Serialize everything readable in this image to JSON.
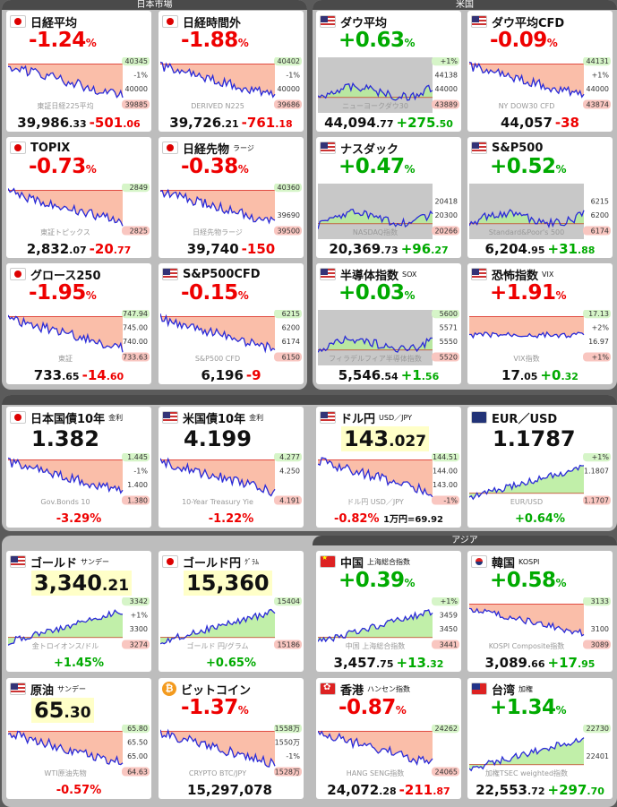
{
  "groups": [
    {
      "id": "japan",
      "title": "日本市場"
    },
    {
      "id": "us",
      "title": "米国"
    },
    {
      "id": "fx",
      "title": ""
    },
    {
      "id": "asia",
      "title": "アジア"
    }
  ],
  "cards": {
    "nikkei": {
      "flag": "jp",
      "name": "日経平均",
      "sub": "",
      "change": "-1.24",
      "pct": "%",
      "dir": "neg",
      "p_int": "39,986",
      "p_dec": ".33",
      "p_chg_int": "-501",
      "p_chg_dec": ".06",
      "watermark": "東証日経225平均",
      "levels": [
        "40345",
        "-1%",
        "40000",
        "39885"
      ],
      "mode": "lower"
    },
    "nikkei_after": {
      "flag": "jp",
      "name": "日経時間外",
      "sub": "",
      "change": "-1.88",
      "pct": "%",
      "dir": "neg",
      "p_int": "39,726",
      "p_dec": ".21",
      "p_chg_int": "-761",
      "p_chg_dec": ".18",
      "watermark": "DERIVED N225",
      "levels": [
        "40402",
        "-1%",
        "40000",
        "39686"
      ],
      "mode": "lower"
    },
    "dow": {
      "flag": "us",
      "name": "ダウ平均",
      "sub": "",
      "change": "+0.63",
      "pct": "%",
      "dir": "pos",
      "p_int": "44,094",
      "p_dec": ".77",
      "p_chg_int": "+275",
      "p_chg_dec": ".50",
      "watermark": "ニューヨークダウ30",
      "levels": [
        "+1%",
        "44138",
        "44000",
        "43889"
      ],
      "mode": "upper"
    },
    "dow_cfd": {
      "flag": "us",
      "name": "ダウ平均CFD",
      "sub": "",
      "change": "-0.09",
      "pct": "%",
      "dir": "neg",
      "p_int": "44,057",
      "p_dec": "",
      "p_chg_int": "-38",
      "p_chg_dec": "",
      "watermark": "NY DOW30 CFD",
      "levels": [
        "44131",
        "+1%",
        "44000",
        "43874"
      ],
      "mode": "lower"
    },
    "topix": {
      "flag": "jp",
      "name": "TOPIX",
      "sub": "",
      "change": "-0.73",
      "pct": "%",
      "dir": "neg",
      "p_int": "2,832",
      "p_dec": ".07",
      "p_chg_int": "-20",
      "p_chg_dec": ".77",
      "watermark": "東証トピックス",
      "levels": [
        "2849",
        "",
        "",
        "2825"
      ],
      "mode": "lower"
    },
    "nk_fut": {
      "flag": "jp",
      "name": "日経先物",
      "sub": "ラージ",
      "change": "-0.38",
      "pct": "%",
      "dir": "neg",
      "p_int": "39,740",
      "p_dec": "",
      "p_chg_int": "-150",
      "p_chg_dec": "",
      "watermark": "日経先物ラージ",
      "levels": [
        "40360",
        "",
        "39690",
        "39500"
      ],
      "mode": "lower"
    },
    "nasdaq": {
      "flag": "us",
      "name": "ナスダック",
      "sub": "",
      "change": "+0.47",
      "pct": "%",
      "dir": "pos",
      "p_int": "20,369",
      "p_dec": ".73",
      "p_chg_int": "+96",
      "p_chg_dec": ".27",
      "watermark": "NASDAQ指数",
      "levels": [
        "",
        "20418",
        "20300",
        "20266"
      ],
      "mode": "upper"
    },
    "sp500": {
      "flag": "us",
      "name": "S&P500",
      "sub": "",
      "change": "+0.52",
      "pct": "%",
      "dir": "pos",
      "p_int": "6,204",
      "p_dec": ".95",
      "p_chg_int": "+31",
      "p_chg_dec": ".88",
      "watermark": "Standard&Poor's 500",
      "levels": [
        "",
        "6215",
        "6200",
        "6174"
      ],
      "mode": "upper"
    },
    "growth": {
      "flag": "jp",
      "name": "グロース250",
      "sub": "",
      "change": "-1.95",
      "pct": "%",
      "dir": "neg",
      "p_int": "733",
      "p_dec": ".65",
      "p_chg_int": "-14",
      "p_chg_dec": ".60",
      "watermark": "東証",
      "levels": [
        "747.94",
        "745.00",
        "740.00",
        "733.63"
      ],
      "mode": "lower"
    },
    "sp_cfd": {
      "flag": "us",
      "name": "S&P500CFD",
      "sub": "",
      "change": "-0.15",
      "pct": "%",
      "dir": "neg",
      "p_int": "6,196",
      "p_dec": "",
      "p_chg_int": "-9",
      "p_chg_dec": "",
      "watermark": "S&P500 CFD",
      "levels": [
        "6215",
        "6200",
        "6174",
        "6150"
      ],
      "mode": "lower"
    },
    "sox": {
      "flag": "us",
      "name": "半導体指数",
      "sub": "SOX",
      "change": "+0.03",
      "pct": "%",
      "dir": "pos",
      "p_int": "5,546",
      "p_dec": ".54",
      "p_chg_int": "+1",
      "p_chg_dec": ".56",
      "watermark": "フィラデルフィア半導体指数",
      "levels": [
        "5600",
        "5571",
        "5550",
        "5520"
      ],
      "mode": "upper"
    },
    "vix": {
      "flag": "us",
      "name": "恐怖指数",
      "sub": "VIX",
      "change": "+1.91",
      "pct": "%",
      "dir": "neg",
      "p_int": "17",
      "p_dec": ".05",
      "p_chg_int": "+0",
      "p_chg_dec": ".32",
      "watermark": "VIX指数",
      "levels": [
        "17.13",
        "+2%",
        "16.97",
        "+1%"
      ],
      "mode": "flat"
    },
    "jgb10": {
      "flag": "jp",
      "name": "日本国債10年",
      "sub": "金利",
      "value_int": "1.382",
      "value_dec": "",
      "hl": false,
      "change": "-3.29",
      "pct": "%",
      "dir": "neg",
      "note": "",
      "watermark": "Gov.Bonds 10",
      "levels": [
        "1.445",
        "-1%",
        "1.400",
        "1.380"
      ],
      "mode": "lower"
    },
    "ust10": {
      "flag": "us",
      "name": "米国債10年",
      "sub": "金利",
      "value_int": "4.199",
      "value_dec": "",
      "hl": false,
      "change": "-1.22",
      "pct": "%",
      "dir": "neg",
      "note": "",
      "watermark": "10-Year Treasury Yie",
      "levels": [
        "4.277",
        "4.250",
        "",
        "4.191"
      ],
      "mode": "lower"
    },
    "usdjpy": {
      "flag": "us",
      "name": "ドル円",
      "sub": "USD／JPY",
      "value_int": "143",
      "value_dec": ".027",
      "hl": true,
      "change": "-0.82",
      "pct": "%",
      "dir": "neg",
      "note": "1万円=69.92",
      "watermark": "ドル円 USD／JPY",
      "levels": [
        "144.51",
        "144.00",
        "143.00",
        "-1%"
      ],
      "mode": "lower"
    },
    "eurusd": {
      "flag": "eu",
      "name": "EUR／USD",
      "sub": "",
      "value_int": "1.1787",
      "value_dec": "",
      "hl": false,
      "change": "+0.64",
      "pct": "%",
      "dir": "pos",
      "note": "",
      "watermark": "EUR/USD",
      "levels": [
        "+1%",
        "1.1807",
        "",
        "1.1707"
      ],
      "mode": "rise"
    },
    "gold": {
      "flag": "us",
      "name": "ゴールド",
      "sub": "サンデー",
      "value_int": "3,340",
      "value_dec": ".21",
      "hl": true,
      "change": "+1.45",
      "pct": "%",
      "dir": "pos",
      "note": "",
      "watermark": "金トロイオンス/ドル",
      "levels": [
        "3342",
        "+1%",
        "3300",
        "3274"
      ],
      "mode": "rise"
    },
    "gold_jpy": {
      "flag": "jp",
      "name": "ゴールド円",
      "sub": "ｸﾞﾗﾑ",
      "value_int": "15,360",
      "value_dec": "",
      "hl": true,
      "change": "+0.65",
      "pct": "%",
      "dir": "pos",
      "note": "",
      "watermark": "ゴールド 円/グラム",
      "levels": [
        "15404",
        "",
        "",
        "15186"
      ],
      "mode": "rise"
    },
    "china": {
      "flag": "cn",
      "name": "中国",
      "sub": "上海総合指数",
      "change": "+0.39",
      "pct": "%",
      "dir": "pos",
      "p_int": "3,457",
      "p_dec": ".75",
      "p_chg_int": "+13",
      "p_chg_dec": ".32",
      "watermark": "中国 上海総合指数",
      "levels": [
        "+1%",
        "3459",
        "3450",
        "3441"
      ],
      "mode": "rise"
    },
    "korea": {
      "flag": "kr",
      "name": "韓国",
      "sub": "KOSPI",
      "change": "+0.58",
      "pct": "%",
      "dir": "pos",
      "p_int": "3,089",
      "p_dec": ".66",
      "p_chg_int": "+17",
      "p_chg_dec": ".95",
      "watermark": "KOSPI Composite指数",
      "levels": [
        "3133",
        "",
        "3100",
        "3089"
      ],
      "mode": "fall"
    },
    "oil": {
      "flag": "us",
      "name": "原油",
      "sub": "サンデー",
      "value_int": "65",
      "value_dec": ".30",
      "hl": true,
      "change": "-0.57",
      "pct": "%",
      "dir": "neg",
      "note": "",
      "watermark": "WTI原油先物",
      "levels": [
        "65.80",
        "65.50",
        "65.00",
        "64.63"
      ],
      "mode": "lower"
    },
    "btc": {
      "flag": "btc",
      "name": "ビットコイン",
      "sub": "",
      "change": "-1.37",
      "pct": "%",
      "dir": "neg",
      "p_int": "15,297,078",
      "p_dec": "",
      "p_chg_int": "",
      "p_chg_dec": "",
      "watermark": "CRYPTO BTC/JPY",
      "levels": [
        "1558万",
        "1550万",
        "-1%",
        "1528万"
      ],
      "mode": "lower"
    },
    "hk": {
      "flag": "hk",
      "name": "香港",
      "sub": "ハンセン指数",
      "change": "-0.87",
      "pct": "%",
      "dir": "neg",
      "p_int": "24,072",
      "p_dec": ".28",
      "p_chg_int": "-211",
      "p_chg_dec": ".87",
      "watermark": "HANG SENG指数",
      "levels": [
        "24262",
        "",
        "",
        "24065"
      ],
      "mode": "lower"
    },
    "tw": {
      "flag": "tw",
      "name": "台湾",
      "sub": "加権",
      "change": "+1.34",
      "pct": "%",
      "dir": "pos",
      "p_int": "22,553",
      "p_dec": ".72",
      "p_chg_int": "+297",
      "p_chg_dec": ".70",
      "watermark": "加権TSEC weighted指数",
      "levels": [
        "22730",
        "",
        "22401",
        ""
      ],
      "mode": "rise"
    }
  },
  "colors": {
    "neg": "#e00000",
    "pos": "#00a000",
    "line": "#2a2ad8",
    "fall_fill": "#f9b39a",
    "rise_fill": "#b6ec9a",
    "bg_gray": "#c8c8c8"
  }
}
